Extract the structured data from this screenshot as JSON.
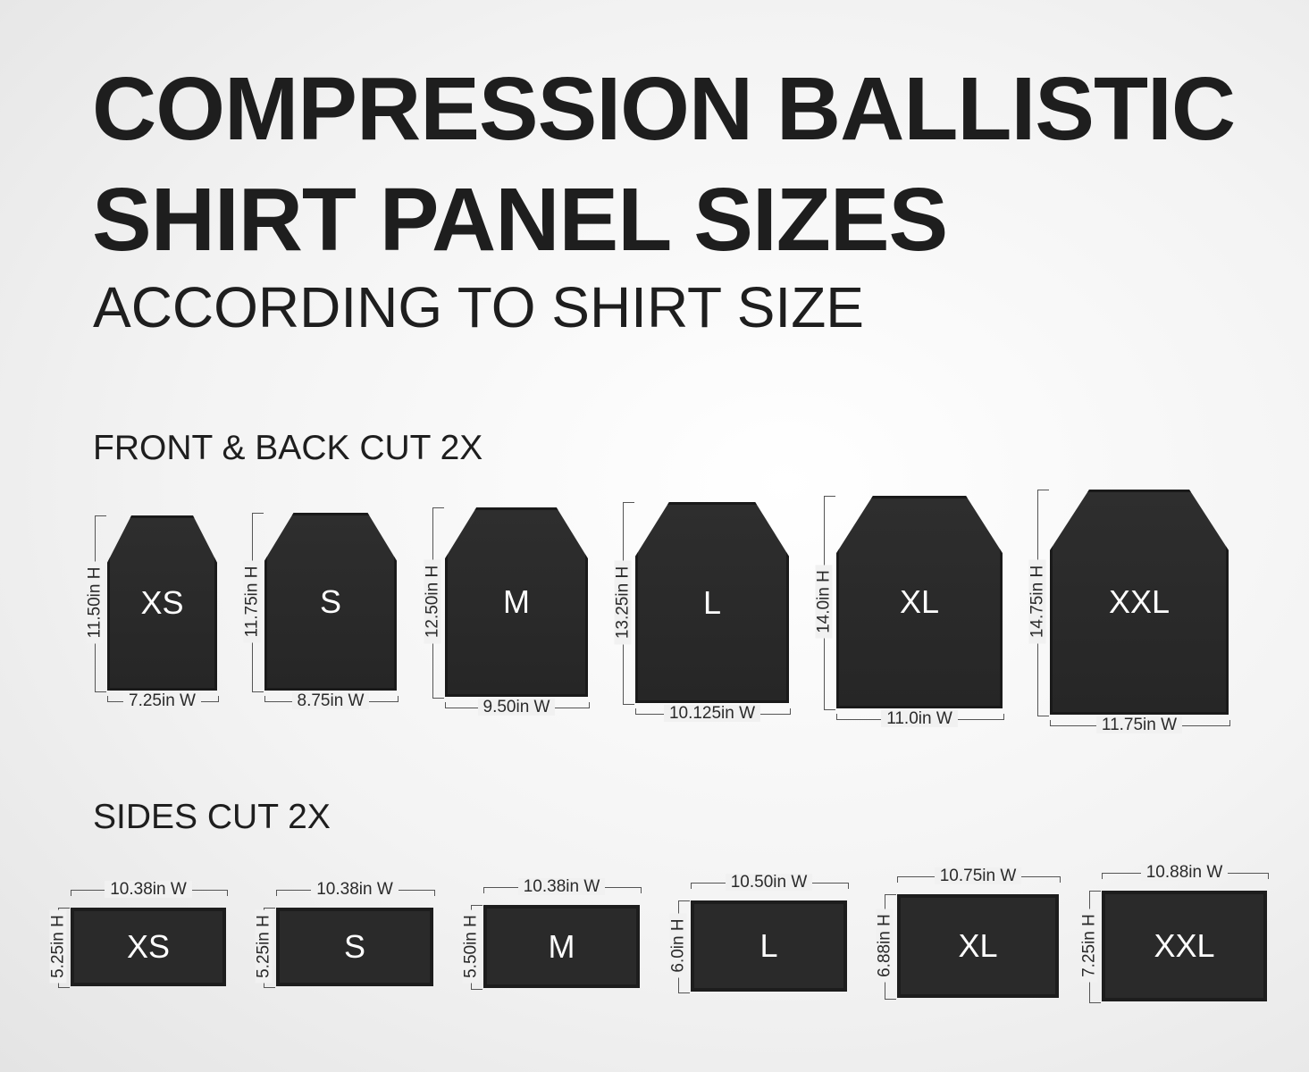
{
  "title": {
    "line1": "COMPRESSION BALLISTIC",
    "line2": "SHIRT PANEL SIZES",
    "subtitle": "ACCORDING TO SHIRT SIZE"
  },
  "front_back": {
    "heading": "FRONT & BACK CUT 2X",
    "panels": [
      {
        "size": "XS",
        "height": "11.50in H",
        "width": "7.25in W"
      },
      {
        "size": "S",
        "height": "11.75in H",
        "width": "8.75in W"
      },
      {
        "size": "M",
        "height": "12.50in H",
        "width": "9.50in W"
      },
      {
        "size": "L",
        "height": "13.25in H",
        "width": "10.125in W"
      },
      {
        "size": "XL",
        "height": "14.0in H",
        "width": "11.0in W"
      },
      {
        "size": "XXL",
        "height": "14.75in H",
        "width": "11.75in W"
      }
    ]
  },
  "sides": {
    "heading": "SIDES CUT 2X",
    "panels": [
      {
        "size": "XS",
        "height": "5.25in H",
        "width": "10.38in W"
      },
      {
        "size": "S",
        "height": "5.25in H",
        "width": "10.38in W"
      },
      {
        "size": "M",
        "height": "5.50in H",
        "width": "10.38in W"
      },
      {
        "size": "L",
        "height": "6.0in H",
        "width": "10.50in W"
      },
      {
        "size": "XL",
        "height": "6.88in H",
        "width": "10.75in W"
      },
      {
        "size": "XXL",
        "height": "7.25in H",
        "width": "10.88in W"
      }
    ]
  },
  "colors": {
    "panel": "#2a2a2a",
    "text": "#1e1e1e"
  }
}
